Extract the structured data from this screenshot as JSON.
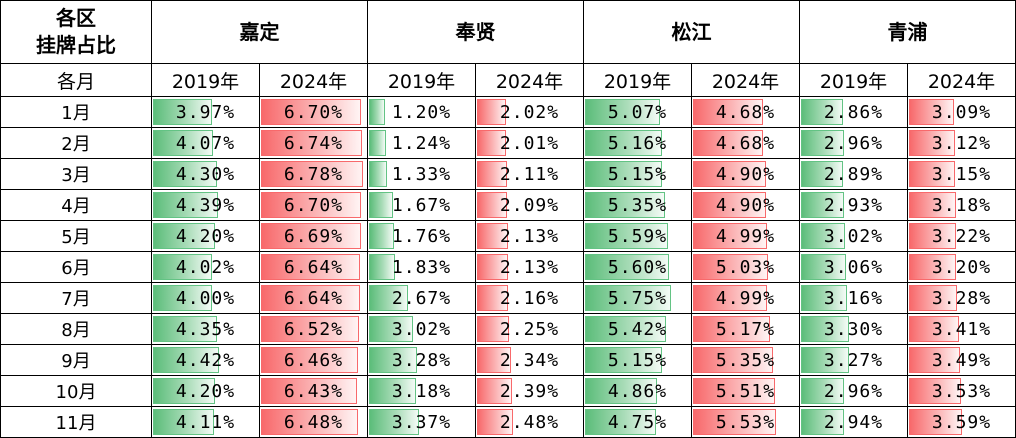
{
  "header": {
    "corner_line1": "各区",
    "corner_line2": "挂牌占比",
    "districts": [
      "嘉定",
      "奉贤",
      "松江",
      "青浦"
    ],
    "month_col_label": "各月",
    "years": [
      "2019年",
      "2024年"
    ]
  },
  "bar_scale_max": 7.0,
  "colors": {
    "year_2019": "#63c384",
    "year_2024": "#f8696b"
  },
  "rows": [
    {
      "month": "1月",
      "values": [
        [
          "3.97%",
          "6.70%"
        ],
        [
          "1.20%",
          "2.02%"
        ],
        [
          "5.07%",
          "4.68%"
        ],
        [
          "2.86%",
          "3.09%"
        ]
      ]
    },
    {
      "month": "2月",
      "values": [
        [
          "4.07%",
          "6.74%"
        ],
        [
          "1.24%",
          "2.01%"
        ],
        [
          "5.16%",
          "4.68%"
        ],
        [
          "2.96%",
          "3.12%"
        ]
      ]
    },
    {
      "month": "3月",
      "values": [
        [
          "4.30%",
          "6.78%"
        ],
        [
          "1.33%",
          "2.11%"
        ],
        [
          "5.15%",
          "4.90%"
        ],
        [
          "2.89%",
          "3.15%"
        ]
      ]
    },
    {
      "month": "4月",
      "values": [
        [
          "4.39%",
          "6.70%"
        ],
        [
          "1.67%",
          "2.09%"
        ],
        [
          "5.35%",
          "4.90%"
        ],
        [
          "2.93%",
          "3.18%"
        ]
      ]
    },
    {
      "month": "5月",
      "values": [
        [
          "4.20%",
          "6.69%"
        ],
        [
          "1.76%",
          "2.13%"
        ],
        [
          "5.59%",
          "4.99%"
        ],
        [
          "3.02%",
          "3.22%"
        ]
      ]
    },
    {
      "month": "6月",
      "values": [
        [
          "4.02%",
          "6.64%"
        ],
        [
          "1.83%",
          "2.13%"
        ],
        [
          "5.60%",
          "5.03%"
        ],
        [
          "3.06%",
          "3.20%"
        ]
      ]
    },
    {
      "month": "7月",
      "values": [
        [
          "4.00%",
          "6.64%"
        ],
        [
          "2.67%",
          "2.16%"
        ],
        [
          "5.75%",
          "4.99%"
        ],
        [
          "3.16%",
          "3.28%"
        ]
      ]
    },
    {
      "month": "8月",
      "values": [
        [
          "4.35%",
          "6.52%"
        ],
        [
          "3.02%",
          "2.25%"
        ],
        [
          "5.42%",
          "5.17%"
        ],
        [
          "3.30%",
          "3.41%"
        ]
      ]
    },
    {
      "month": "9月",
      "values": [
        [
          "4.42%",
          "6.46%"
        ],
        [
          "3.28%",
          "2.34%"
        ],
        [
          "5.15%",
          "5.35%"
        ],
        [
          "3.27%",
          "3.49%"
        ]
      ]
    },
    {
      "month": "10月",
      "values": [
        [
          "4.20%",
          "6.43%"
        ],
        [
          "3.18%",
          "2.39%"
        ],
        [
          "4.86%",
          "5.51%"
        ],
        [
          "2.96%",
          "3.53%"
        ]
      ]
    },
    {
      "month": "11月",
      "values": [
        [
          "4.11%",
          "6.48%"
        ],
        [
          "3.37%",
          "2.48%"
        ],
        [
          "4.75%",
          "5.53%"
        ],
        [
          "2.94%",
          "3.59%"
        ]
      ]
    }
  ]
}
